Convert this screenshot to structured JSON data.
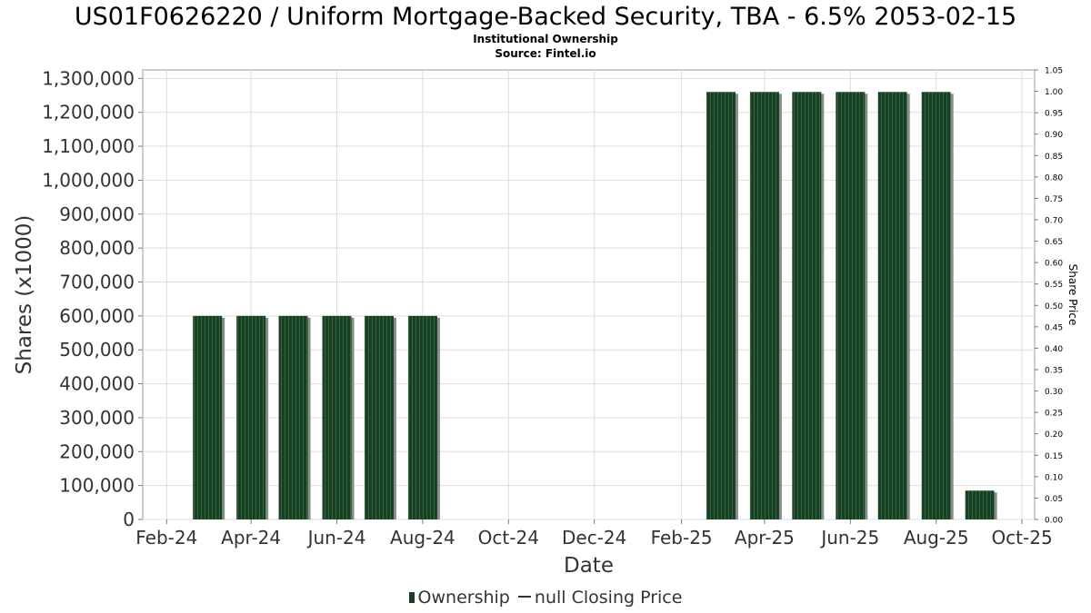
{
  "title": "US01F0626220 / Uniform Mortgage-Backed Security, TBA - 6.5% 2053-02-15",
  "subtitle": "Institutional Ownership",
  "source": "Source: Fintel.io",
  "legend": {
    "ownership_label": "Ownership",
    "price_label": "null Closing Price"
  },
  "colors": {
    "bar": "#1a3f25",
    "bar_stripe": "#2a6a3a",
    "bar_shadow": "#8a8a8a",
    "grid": "#dddddd",
    "axis_text": "#333333"
  },
  "chart_data": {
    "type": "bar",
    "title": "US01F0626220 / Uniform Mortgage-Backed Security, TBA - 6.5% 2053-02-15",
    "subtitle": "Institutional Ownership",
    "xlabel": "Date",
    "ylabel": "Shares (x1000)",
    "y2label": "Share Price",
    "x_ticks": [
      "Feb-24",
      "Apr-24",
      "Jun-24",
      "Aug-24",
      "Oct-24",
      "Dec-24",
      "Feb-25",
      "Apr-25",
      "Jun-25",
      "Aug-25",
      "Oct-25"
    ],
    "x_range": [
      "2024-01-15",
      "2025-10-10"
    ],
    "ylim": [
      0,
      1325000
    ],
    "y_ticks": [
      0,
      100000,
      200000,
      300000,
      400000,
      500000,
      600000,
      700000,
      800000,
      900000,
      1000000,
      1100000,
      1200000,
      1300000
    ],
    "y_tick_labels": [
      "0",
      "100,000",
      "200,000",
      "300,000",
      "400,000",
      "500,000",
      "600,000",
      "700,000",
      "800,000",
      "900,000",
      "1,000,000",
      "1,100,000",
      "1,200,000",
      "1,300,000"
    ],
    "y2lim": [
      0,
      1.05
    ],
    "y2_tick_labels": [
      "0.00",
      "0.05",
      "0.10",
      "0.15",
      "0.20",
      "0.25",
      "0.30",
      "0.35",
      "0.40",
      "0.45",
      "0.50",
      "0.55",
      "0.60",
      "0.65",
      "0.70",
      "0.75",
      "0.80",
      "0.85",
      "0.90",
      "0.95",
      "1.00",
      "1.05"
    ],
    "grid": true,
    "legend_position": "bottom",
    "series": [
      {
        "name": "Ownership",
        "points": [
          {
            "date": "2024-03-01",
            "value": 600000
          },
          {
            "date": "2024-04-01",
            "value": 600000
          },
          {
            "date": "2024-05-01",
            "value": 600000
          },
          {
            "date": "2024-06-01",
            "value": 600000
          },
          {
            "date": "2024-07-01",
            "value": 600000
          },
          {
            "date": "2024-08-01",
            "value": 600000
          },
          {
            "date": "2025-03-01",
            "value": 1260000
          },
          {
            "date": "2025-04-01",
            "value": 1260000
          },
          {
            "date": "2025-05-01",
            "value": 1260000
          },
          {
            "date": "2025-06-01",
            "value": 1260000
          },
          {
            "date": "2025-07-01",
            "value": 1260000
          },
          {
            "date": "2025-08-01",
            "value": 1260000
          },
          {
            "date": "2025-09-01",
            "value": 85000
          }
        ]
      },
      {
        "name": "null Closing Price",
        "points": []
      }
    ]
  }
}
